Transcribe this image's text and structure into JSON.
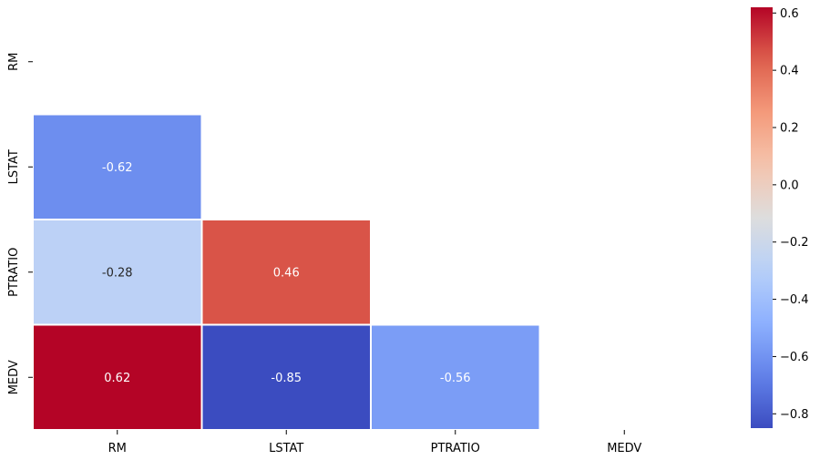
{
  "chart_data": {
    "type": "heatmap",
    "variables": [
      "RM",
      "LSTAT",
      "PTRATIO",
      "MEDV"
    ],
    "mask": "upper-triangle-and-diagonal",
    "cells": [
      {
        "row": "LSTAT",
        "col": "RM",
        "value": -0.62,
        "label": "-0.62"
      },
      {
        "row": "PTRATIO",
        "col": "RM",
        "value": -0.28,
        "label": "-0.28"
      },
      {
        "row": "PTRATIO",
        "col": "LSTAT",
        "value": 0.46,
        "label": "0.46"
      },
      {
        "row": "MEDV",
        "col": "RM",
        "value": 0.62,
        "label": "0.62"
      },
      {
        "row": "MEDV",
        "col": "LSTAT",
        "value": -0.85,
        "label": "-0.85"
      },
      {
        "row": "MEDV",
        "col": "PTRATIO",
        "value": -0.56,
        "label": "-0.56"
      }
    ],
    "colormap": "coolwarm",
    "colorbar": {
      "vmin": -0.85,
      "vmax": 0.62,
      "ticks": [
        {
          "value": 0.6,
          "label": "0.6"
        },
        {
          "value": 0.4,
          "label": "0.4"
        },
        {
          "value": 0.2,
          "label": "0.2"
        },
        {
          "value": 0.0,
          "label": "0.0"
        },
        {
          "value": -0.2,
          "label": "−0.2"
        },
        {
          "value": -0.4,
          "label": "−0.4"
        },
        {
          "value": -0.6,
          "label": "−0.6"
        },
        {
          "value": -0.8,
          "label": "−0.8"
        }
      ]
    },
    "colors": {
      "cold": "#3b4cc0",
      "mid": "#dddddd",
      "warm": "#b40426",
      "cell_border": "#ffffff",
      "text_light": "#ffffff",
      "text_dark": "#262626"
    }
  }
}
